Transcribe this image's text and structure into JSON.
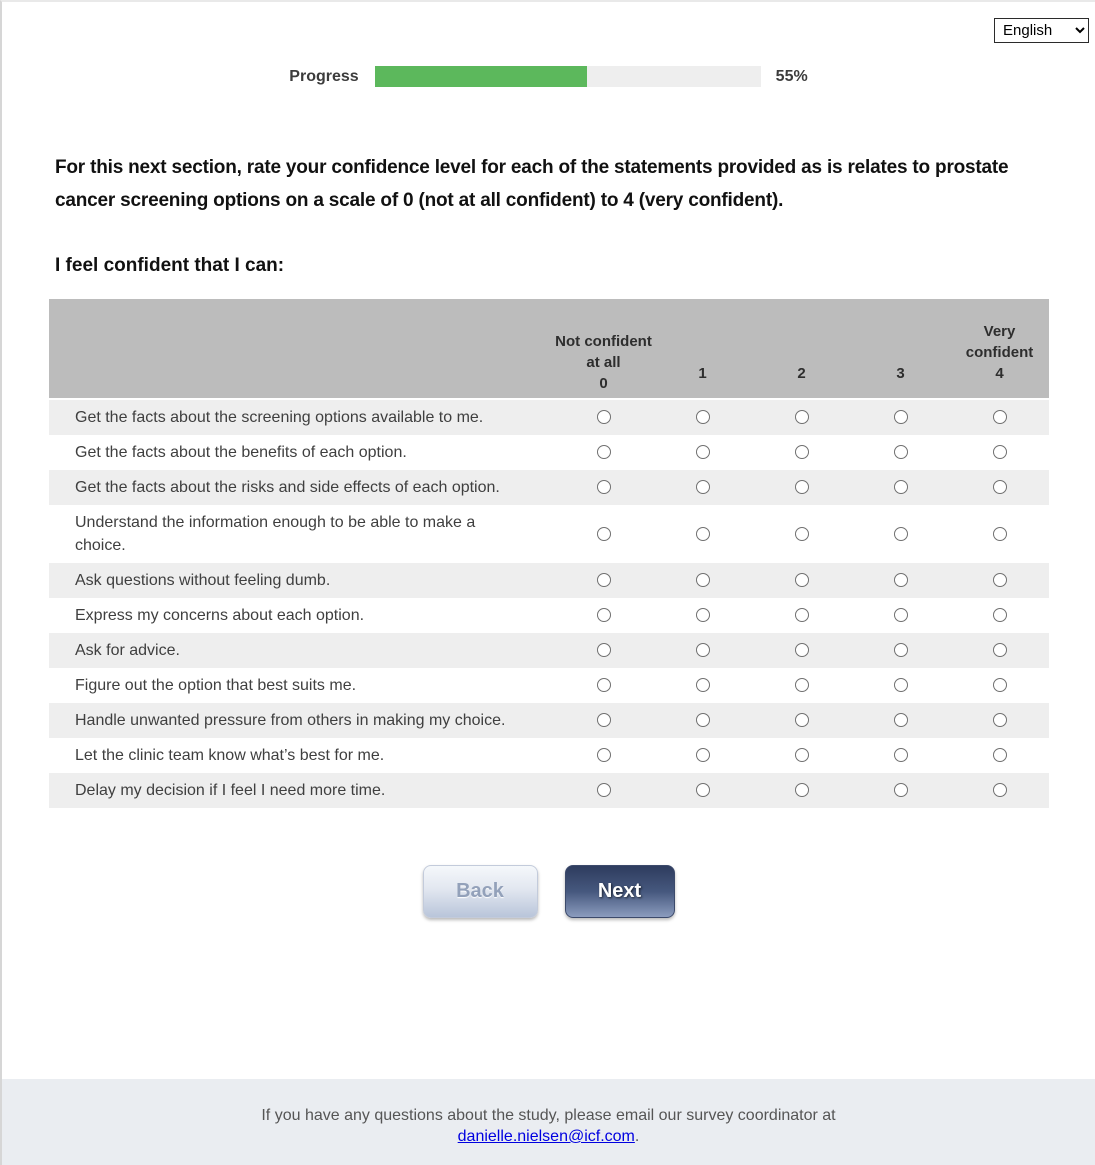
{
  "language_selector": {
    "selected": "English",
    "options": [
      "English"
    ]
  },
  "progress": {
    "label": "Progress",
    "percent": 55,
    "percent_label": "55%"
  },
  "intro": "For this next section, rate your confidence level for each of the statements provided as is relates to prostate cancer screening options on a scale of 0 (not at all confident) to 4 (very confident).",
  "subheading": "I feel confident that I can:",
  "table": {
    "columns": [
      {
        "label": "Not confident at all",
        "value": "0"
      },
      {
        "label": "",
        "value": "1"
      },
      {
        "label": "",
        "value": "2"
      },
      {
        "label": "",
        "value": "3"
      },
      {
        "label": "Very confident",
        "value": "4"
      }
    ],
    "rows": [
      "Get the facts about the screening options available to me.",
      "Get the facts about the benefits of each option.",
      "Get the facts about the risks and side effects of each option.",
      "Understand the information enough to be able to make a choice.",
      "Ask questions without feeling dumb.",
      "Express my concerns about each option.",
      "Ask for advice.",
      "Figure out the option that best suits me.",
      "Handle unwanted pressure from others in making my choice.",
      "Let the clinic team know what’s best for me.",
      "Delay my decision if I feel I need more time."
    ]
  },
  "buttons": {
    "back": "Back",
    "next": "Next"
  },
  "footer": {
    "text": "If you have any questions about the study, please email our survey coordinator at",
    "email": "danielle.nielsen@icf.com",
    "suffix": "."
  },
  "colors": {
    "progress_fill": "#5cb85c",
    "progress_track": "#eeeeee",
    "header_gray": "#bcbcbc",
    "row_stripe": "#eeeeee",
    "footer_bg": "#eaedf1",
    "link_blue": "#0000e0",
    "next_button_top": "#2e3c5e",
    "next_button_bottom": "#8b9cbe",
    "back_button_top": "#f5f8fb",
    "back_button_bottom": "#b9c5da"
  }
}
